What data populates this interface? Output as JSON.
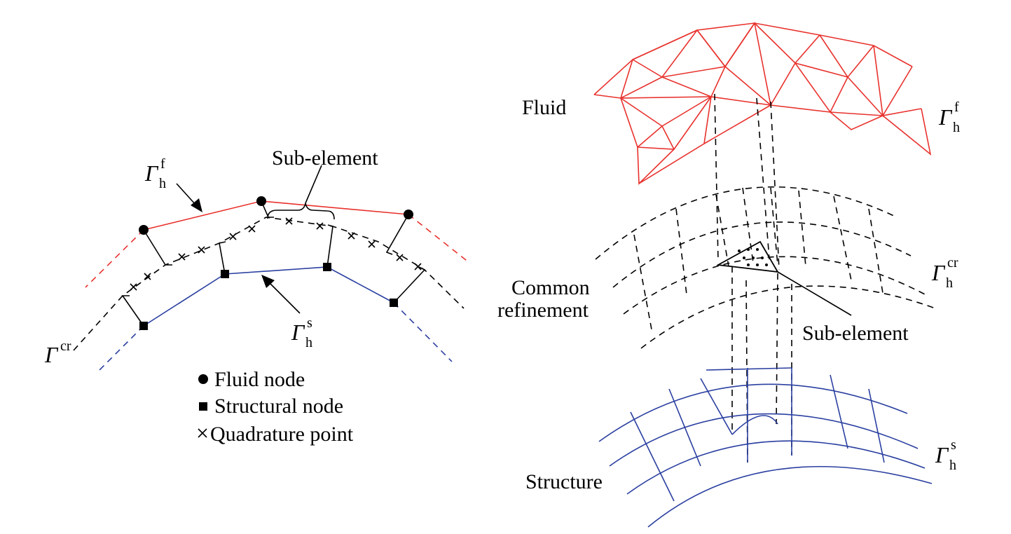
{
  "left_panel": {
    "gamma_f": {
      "symbol": "Γ",
      "sub": "h",
      "sup": "f"
    },
    "gamma_s": {
      "symbol": "Γ",
      "sub": "h",
      "sup": "s"
    },
    "gamma_cr": {
      "symbol": "Γ",
      "sup": "cr"
    },
    "sub_element_label": "Sub-element",
    "legend": [
      {
        "marker": "●",
        "label": "Fluid node"
      },
      {
        "marker": "■",
        "label": "Structural node"
      },
      {
        "marker": "×",
        "label": "Quadrature point"
      }
    ]
  },
  "right_panel": {
    "fluid_label": "Fluid",
    "common_label_line1": "Common",
    "common_label_line2": "refinement",
    "structure_label": "Structure",
    "sub_element_label": "Sub-element",
    "gamma_f": {
      "symbol": "Γ",
      "sub": "h",
      "sup": "f"
    },
    "gamma_cr": {
      "symbol": "Γ",
      "sub": "h",
      "sup": "cr"
    },
    "gamma_s": {
      "symbol": "Γ",
      "sub": "h",
      "sup": "s"
    }
  },
  "colors": {
    "fluid": "#e8322d",
    "structure": "#2a3fa0",
    "interface": "#000000"
  }
}
